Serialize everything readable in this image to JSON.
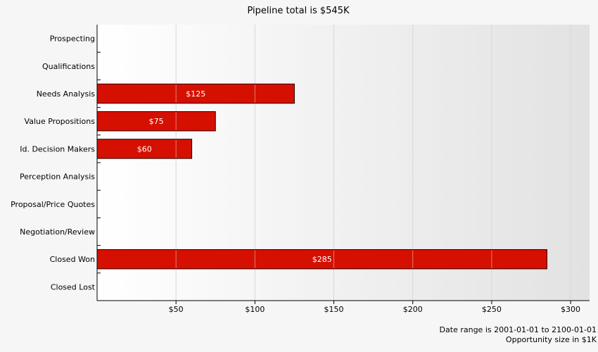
{
  "chart_data": {
    "type": "bar",
    "orientation": "horizontal",
    "title": "Pipeline total is $545K",
    "categories": [
      "Prospecting",
      "Qualifications",
      "Needs Analysis",
      "Value Propositions",
      "Id. Decision Makers",
      "Perception Analysis",
      "Proposal/Price Quotes",
      "Negotiation/Review",
      "Closed Won",
      "Closed Lost"
    ],
    "values": [
      0,
      0,
      125,
      75,
      60,
      0,
      0,
      0,
      285,
      0
    ],
    "data_labels": [
      "",
      "",
      "$125",
      "$75",
      "$60",
      "",
      "",
      "",
      "$285",
      ""
    ],
    "xticks": [
      50,
      100,
      150,
      200,
      250,
      300
    ],
    "xtick_labels": [
      "$50",
      "$100",
      "$150",
      "$200",
      "$250",
      "$300"
    ],
    "xlim": [
      0,
      312
    ],
    "grid": true,
    "colors": {
      "bar": "#d51000",
      "bar_stroke": "#2a0000",
      "plot_bg_start": "#ffffff",
      "plot_bg_end": "#e2e2e2"
    }
  },
  "footer": {
    "date_range": "Date range is 2001-01-01 to 2100-01-01",
    "size_note": "Opportunity size in $1K"
  }
}
